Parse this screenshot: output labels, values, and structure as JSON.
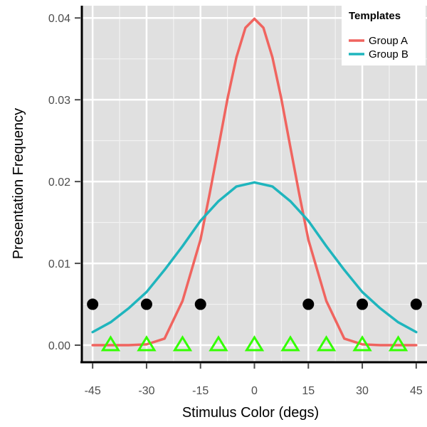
{
  "chart_data": {
    "type": "line",
    "xlabel": "Stimulus Color (degs)",
    "ylabel": "Presentation Frequency",
    "xlim": [
      -48,
      48
    ],
    "ylim": [
      -0.002,
      0.0415
    ],
    "x_ticks": [
      -45,
      -30,
      -15,
      0,
      15,
      30,
      45
    ],
    "x_tick_labels": [
      "-45",
      "-30",
      "-15",
      "0",
      "15",
      "30",
      "45"
    ],
    "y_ticks": [
      0,
      0.01,
      0.02,
      0.03,
      0.04
    ],
    "y_tick_labels": [
      "0.00",
      "0.01",
      "0.02",
      "0.03",
      "0.04"
    ],
    "grid": true,
    "panel_background": "#e0e0e0",
    "legend": {
      "title": "Templates",
      "position": "top-right",
      "entries": [
        {
          "label": "Group A",
          "color": "#f0645f"
        },
        {
          "label": "Group B",
          "color": "#1fb5bd"
        }
      ]
    },
    "series": [
      {
        "name": "Group A",
        "color": "#f0645f",
        "x": [
          -45,
          -40,
          -35,
          -30,
          -25,
          -20,
          -15,
          -12.5,
          -10,
          -7.5,
          -5,
          -2.5,
          0,
          2.5,
          5,
          7.5,
          10,
          12.5,
          15,
          20,
          25,
          30,
          35,
          40,
          45
        ],
        "y": [
          0.0,
          0.0,
          0.0,
          0.0001,
          0.0008,
          0.0054,
          0.0129,
          0.0184,
          0.0242,
          0.0301,
          0.0352,
          0.0388,
          0.0399,
          0.0388,
          0.0352,
          0.0301,
          0.0242,
          0.0184,
          0.0129,
          0.0054,
          0.0008,
          0.0001,
          0.0,
          0.0,
          0.0
        ]
      },
      {
        "name": "Group B",
        "color": "#1fb5bd",
        "x": [
          -45,
          -40,
          -35,
          -30,
          -25,
          -20,
          -15,
          -10,
          -5,
          0,
          5,
          10,
          15,
          20,
          25,
          30,
          35,
          40,
          45
        ],
        "y": [
          0.0016,
          0.0028,
          0.0045,
          0.0065,
          0.0092,
          0.0121,
          0.0152,
          0.0176,
          0.0194,
          0.0199,
          0.0194,
          0.0176,
          0.0152,
          0.0121,
          0.0092,
          0.0065,
          0.0045,
          0.0028,
          0.0016
        ]
      }
    ],
    "points": {
      "circles": {
        "color": "#000000",
        "x": [
          -45,
          -30,
          -15,
          15,
          30,
          45
        ],
        "y": [
          0.005,
          0.005,
          0.005,
          0.005,
          0.005,
          0.005
        ]
      },
      "triangles": {
        "color": "#33ff00",
        "x": [
          -40,
          -30,
          -20,
          -10,
          0,
          10,
          20,
          30,
          40
        ],
        "y": [
          0,
          0,
          0,
          0,
          0,
          0,
          0,
          0,
          0
        ]
      }
    }
  }
}
